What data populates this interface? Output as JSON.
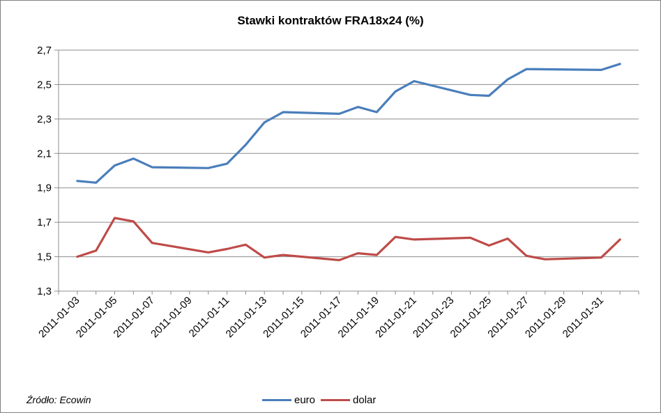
{
  "chart_data": {
    "type": "line",
    "title": "Stawki kontraktów FRA18x24 (%)",
    "x_tick_labels": [
      "2011-01-03",
      "2011-01-05",
      "2011-01-07",
      "2011-01-09",
      "2011-01-11",
      "2011-01-13",
      "2011-01-15",
      "2011-01-17",
      "2011-01-19",
      "2011-01-21",
      "2011-01-23",
      "2011-01-25",
      "2011-01-27",
      "2011-01-29",
      "2011-01-31"
    ],
    "y_tick_labels": [
      "1,3",
      "1,5",
      "1,7",
      "1,9",
      "2,1",
      "2,3",
      "2,5",
      "2,7"
    ],
    "ylim": [
      1.3,
      2.7
    ],
    "xlim": [
      "2011-01-02",
      "2011-02-02"
    ],
    "grid": "horizontal",
    "legend_position": "bottom",
    "series": [
      {
        "name": "euro",
        "color": "#4a7ebb",
        "points": [
          [
            "2011-01-03",
            1.94
          ],
          [
            "2011-01-04",
            1.93
          ],
          [
            "2011-01-05",
            2.03
          ],
          [
            "2011-01-06",
            2.07
          ],
          [
            "2011-01-07",
            2.02
          ],
          [
            "2011-01-10",
            2.015
          ],
          [
            "2011-01-11",
            2.04
          ],
          [
            "2011-01-12",
            2.15
          ],
          [
            "2011-01-13",
            2.28
          ],
          [
            "2011-01-14",
            2.34
          ],
          [
            "2011-01-17",
            2.33
          ],
          [
            "2011-01-18",
            2.37
          ],
          [
            "2011-01-19",
            2.34
          ],
          [
            "2011-01-20",
            2.46
          ],
          [
            "2011-01-21",
            2.52
          ],
          [
            "2011-01-24",
            2.44
          ],
          [
            "2011-01-25",
            2.435
          ],
          [
            "2011-01-26",
            2.53
          ],
          [
            "2011-01-27",
            2.59
          ],
          [
            "2011-01-31",
            2.585
          ],
          [
            "2011-02-01",
            2.62
          ]
        ]
      },
      {
        "name": "dolar",
        "color": "#be4b48",
        "points": [
          [
            "2011-01-03",
            1.5
          ],
          [
            "2011-01-04",
            1.535
          ],
          [
            "2011-01-05",
            1.725
          ],
          [
            "2011-01-06",
            1.705
          ],
          [
            "2011-01-07",
            1.58
          ],
          [
            "2011-01-10",
            1.525
          ],
          [
            "2011-01-11",
            1.545
          ],
          [
            "2011-01-12",
            1.57
          ],
          [
            "2011-01-13",
            1.495
          ],
          [
            "2011-01-14",
            1.51
          ],
          [
            "2011-01-17",
            1.48
          ],
          [
            "2011-01-18",
            1.52
          ],
          [
            "2011-01-19",
            1.51
          ],
          [
            "2011-01-20",
            1.615
          ],
          [
            "2011-01-21",
            1.6
          ],
          [
            "2011-01-24",
            1.61
          ],
          [
            "2011-01-25",
            1.565
          ],
          [
            "2011-01-26",
            1.605
          ],
          [
            "2011-01-27",
            1.505
          ],
          [
            "2011-01-28",
            1.485
          ],
          [
            "2011-01-31",
            1.495
          ],
          [
            "2011-02-01",
            1.6
          ]
        ]
      }
    ]
  },
  "source_note": "Źródło: Ecowin"
}
